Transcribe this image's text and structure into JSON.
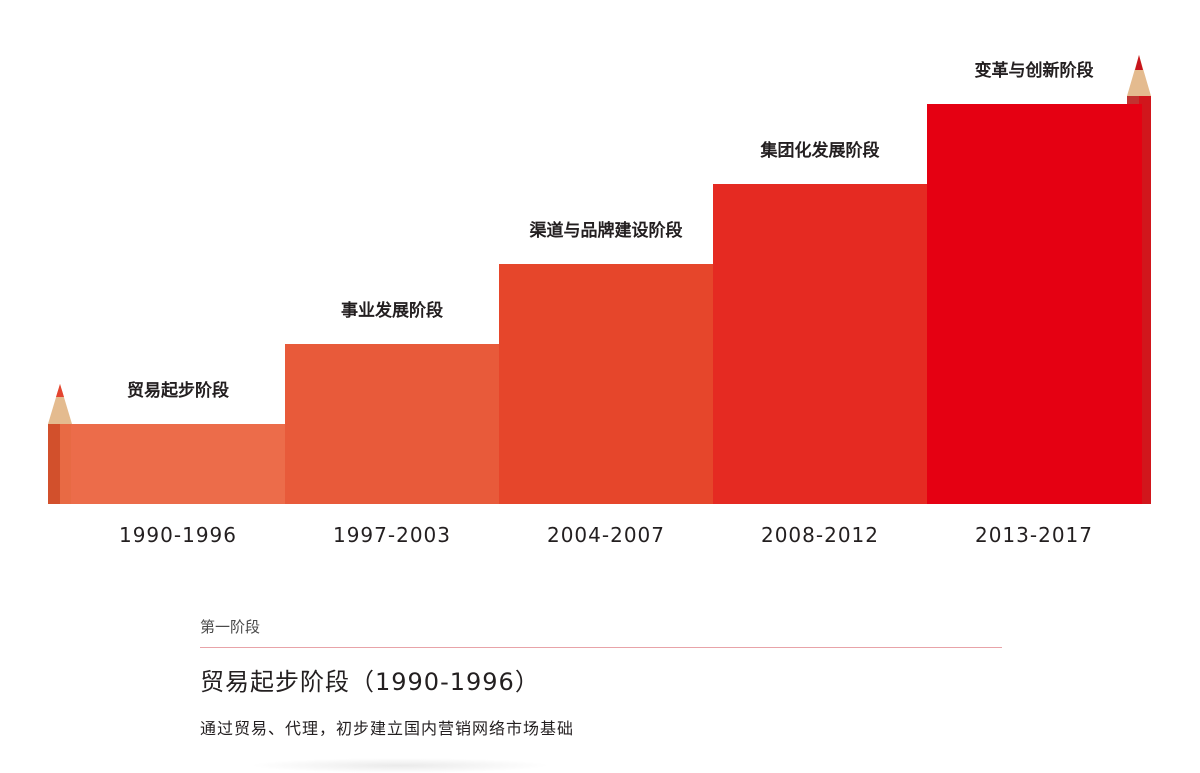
{
  "stages": [
    {
      "years": "1990-1996",
      "label": "贸易起步阶段",
      "color": "#ec6c4a"
    },
    {
      "years": "1997-2003",
      "label": "事业发展阶段",
      "color": "#e85a3a"
    },
    {
      "years": "2004-2007",
      "label": "渠道与品牌建设阶段",
      "color": "#e6462b"
    },
    {
      "years": "2008-2012",
      "label": "集团化发展阶段",
      "color": "#e52a22"
    },
    {
      "years": "2013-2017",
      "label": "变革与创新阶段",
      "color": "#e50012"
    }
  ],
  "detail": {
    "kicker": "第一阶段",
    "title": "贸易起步阶段（1990-1996）",
    "description": "通过贸易、代理，初步建立国内营销网络市场基础"
  }
}
